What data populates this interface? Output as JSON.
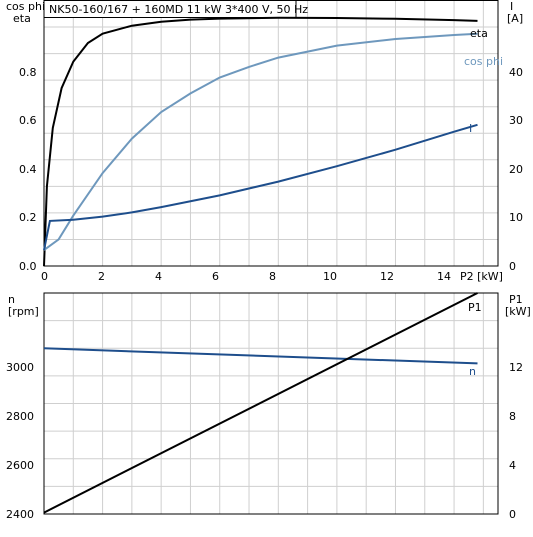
{
  "chart_data": [
    {
      "type": "line",
      "title": "NK50-160/167 + 160MD   11 kW   3*400 V, 50 Hz",
      "xlabel": "P2 [kW]",
      "left_axis_label": [
        "cos phi",
        "eta"
      ],
      "right_axis_label": [
        "I",
        "[A]"
      ],
      "xlim": [
        0,
        15.5
      ],
      "ylim_left": [
        0,
        1.0
      ],
      "ylim_right": [
        0,
        50
      ],
      "x_ticks": [
        "0",
        "2",
        "4",
        "6",
        "8",
        "10",
        "12",
        "14"
      ],
      "y_ticks_left": [
        "0.0",
        "0.2",
        "0.4",
        "0.6",
        "0.8"
      ],
      "y_ticks_right": [
        "0",
        "10",
        "20",
        "30",
        "40"
      ],
      "grid": true,
      "series": [
        {
          "name": "eta",
          "axis": "left",
          "color": "#000000",
          "x": [
            0,
            0.1,
            0.3,
            0.6,
            1.0,
            1.5,
            2,
            3,
            4,
            5,
            6,
            8,
            10,
            12,
            14,
            14.8
          ],
          "y": [
            0.0,
            0.3,
            0.52,
            0.67,
            0.77,
            0.84,
            0.875,
            0.905,
            0.92,
            0.928,
            0.932,
            0.935,
            0.934,
            0.931,
            0.926,
            0.923
          ]
        },
        {
          "name": "cos phi",
          "axis": "left",
          "color": "#6e98bd",
          "x": [
            0,
            0.5,
            1,
            2,
            3,
            4,
            5,
            6,
            7,
            8,
            10,
            12,
            14,
            14.8
          ],
          "y": [
            0.06,
            0.1,
            0.19,
            0.35,
            0.48,
            0.58,
            0.65,
            0.71,
            0.75,
            0.785,
            0.83,
            0.855,
            0.87,
            0.875
          ]
        },
        {
          "name": "I",
          "axis": "right",
          "color": "#1e4e8c",
          "x": [
            0,
            0.2,
            1,
            2,
            3,
            4,
            6,
            8,
            10,
            12,
            14,
            14.8
          ],
          "y": [
            3,
            8.5,
            8.7,
            9.3,
            10.1,
            11.1,
            13.3,
            15.9,
            18.8,
            21.9,
            25.3,
            26.6
          ]
        }
      ]
    },
    {
      "type": "line",
      "xlabel": "",
      "left_axis_label": [
        "n",
        "[rpm]"
      ],
      "right_axis_label": [
        "P1",
        "[kW]"
      ],
      "xlim": [
        0,
        15.5
      ],
      "ylim_left": [
        2400,
        3200
      ],
      "ylim_right": [
        0,
        16
      ],
      "y_ticks_left": [
        "2400",
        "2600",
        "2800",
        "3000"
      ],
      "y_ticks_right": [
        "0",
        "4",
        "8",
        "12"
      ],
      "grid": true,
      "series": [
        {
          "name": "n",
          "axis": "left",
          "color": "#1e4e8c",
          "x": [
            0,
            14.8
          ],
          "y": [
            3000,
            2945
          ]
        },
        {
          "name": "P1",
          "axis": "right",
          "color": "#000000",
          "x": [
            0,
            14.8
          ],
          "y": [
            0.1,
            16
          ]
        }
      ]
    }
  ]
}
